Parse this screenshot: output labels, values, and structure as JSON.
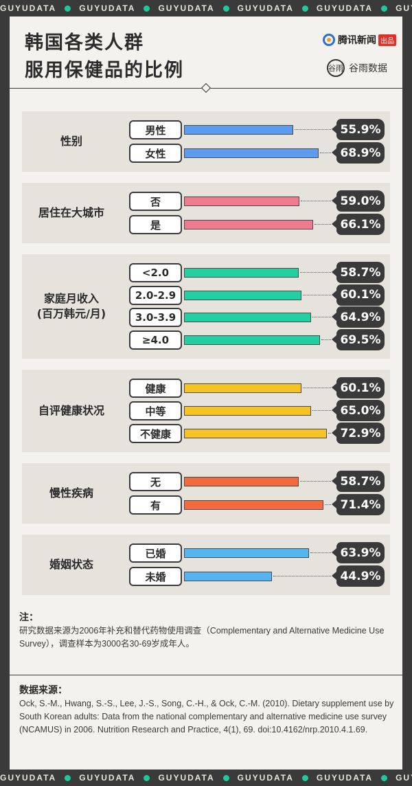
{
  "band_text": "GUYUDATA",
  "title": {
    "line1": "韩国各类人群",
    "line2": "服用保健品的比例"
  },
  "brands": {
    "tencent_name": "腾讯新闻",
    "tencent_tag": "出品",
    "guyu_logo": "谷雨",
    "guyu_name": "谷雨数据"
  },
  "colors": {
    "gender": "#5b9cf0",
    "city": "#f07a8e",
    "income": "#23cfa0",
    "health": "#f6c324",
    "chronic": "#f26a3e",
    "marriage": "#55b4f2"
  },
  "chart_data": {
    "type": "bar",
    "orientation": "horizontal",
    "unit": "%",
    "xlim": [
      0,
      100
    ],
    "groups": [
      {
        "label": "性别",
        "color_key": "gender",
        "categories": [
          "男性",
          "女性"
        ],
        "values": [
          55.9,
          68.9
        ],
        "value_labels": [
          "55.9%",
          "68.9%"
        ]
      },
      {
        "label": "居住在大城市",
        "color_key": "city",
        "categories": [
          "否",
          "是"
        ],
        "values": [
          59.0,
          66.1
        ],
        "value_labels": [
          "59.0%",
          "66.1%"
        ]
      },
      {
        "label": "家庭月收入\n(百万韩元/月)",
        "color_key": "income",
        "categories": [
          "<2.0",
          "2.0-2.9",
          "3.0-3.9",
          "≥4.0"
        ],
        "values": [
          58.7,
          60.1,
          64.9,
          69.5
        ],
        "value_labels": [
          "58.7%",
          "60.1%",
          "64.9%",
          "69.5%"
        ]
      },
      {
        "label": "自评健康状况",
        "color_key": "health",
        "categories": [
          "健康",
          "中等",
          "不健康"
        ],
        "values": [
          60.1,
          65.0,
          72.9
        ],
        "value_labels": [
          "60.1%",
          "65.0%",
          "72.9%"
        ]
      },
      {
        "label": "慢性疾病",
        "color_key": "chronic",
        "categories": [
          "无",
          "有"
        ],
        "values": [
          58.7,
          71.4
        ],
        "value_labels": [
          "58.7%",
          "71.4%"
        ]
      },
      {
        "label": "婚姻状态",
        "color_key": "marriage",
        "categories": [
          "已婚",
          "未婚"
        ],
        "values": [
          63.9,
          44.9
        ],
        "value_labels": [
          "63.9%",
          "44.9%"
        ]
      }
    ]
  },
  "note": {
    "heading": "注：",
    "body": "研究数据来源为2006年补充和替代药物使用调查（Complementary and Alternative Medicine Use Survey），调查样本为3000名30-69岁成年人。"
  },
  "source": {
    "heading": "数据来源：",
    "body": "Ock, S.-M., Hwang, S.-S., Lee, J.-S., Song, C.-H., & Ock, C.-M. (2010). Dietary supplement use by South Korean adults: Data from the national complementary and alternative medicine use survey (NCAMUS) in 2006. Nutrition Research and Practice, 4(1), 69. doi:10.4162/nrp.2010.4.1.69."
  }
}
